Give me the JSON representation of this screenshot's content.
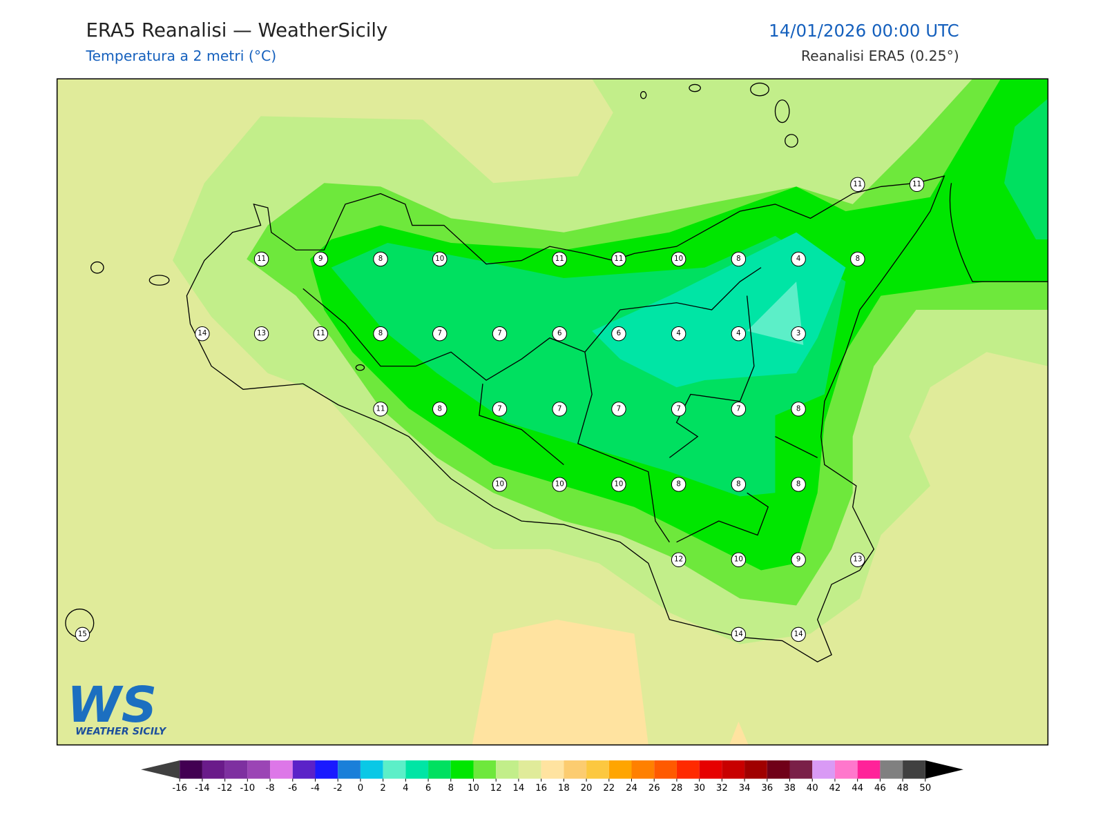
{
  "header": {
    "title": "ERA5 Reanalisi — WeatherSicily",
    "subtitle": "Temperatura a 2 metri (°C)",
    "datetime": "14/01/2026 00:00 UTC",
    "source": "Reanalisi ERA5 (0.25°)"
  },
  "map": {
    "station_values": [
      11,
      11,
      11,
      9,
      8,
      10,
      11,
      11,
      10,
      8,
      4,
      8,
      14,
      13,
      11,
      8,
      7,
      7,
      6,
      6,
      4,
      4,
      3,
      11,
      8,
      7,
      7,
      7,
      7,
      7,
      8,
      10,
      10,
      10,
      8,
      8,
      8,
      12,
      10,
      9,
      13,
      15,
      14,
      14
    ]
  },
  "colorbar": {
    "ticks": [
      -16,
      -14,
      -12,
      -10,
      -8,
      -6,
      -4,
      -2,
      0,
      2,
      4,
      6,
      8,
      10,
      12,
      14,
      16,
      18,
      20,
      22,
      24,
      26,
      28,
      30,
      32,
      34,
      36,
      38,
      40,
      42,
      44,
      46,
      48,
      50
    ],
    "colors": [
      "#420052",
      "#6a1b8a",
      "#7e30a0",
      "#9b45b5",
      "#dd77e8",
      "#5b22c8",
      "#1a1aff",
      "#1a7fd9",
      "#0ac8e6",
      "#5cefc8",
      "#00e5a5",
      "#00e060",
      "#00e600",
      "#6ee83c",
      "#c2ee8a",
      "#e0eb9a",
      "#ffe3a0",
      "#fccc70",
      "#fcc840",
      "#ffa500",
      "#ff8000",
      "#ff5a00",
      "#ff2a00",
      "#e60000",
      "#c80000",
      "#a00000",
      "#700018",
      "#7a2048",
      "#d99af5",
      "#ff77cc",
      "#ff2299",
      "#808080",
      "#404040"
    ],
    "under_color": "#404040",
    "over_color": "#000000"
  },
  "logo": {
    "mark": "WS",
    "text": "WEATHER SICILY"
  }
}
